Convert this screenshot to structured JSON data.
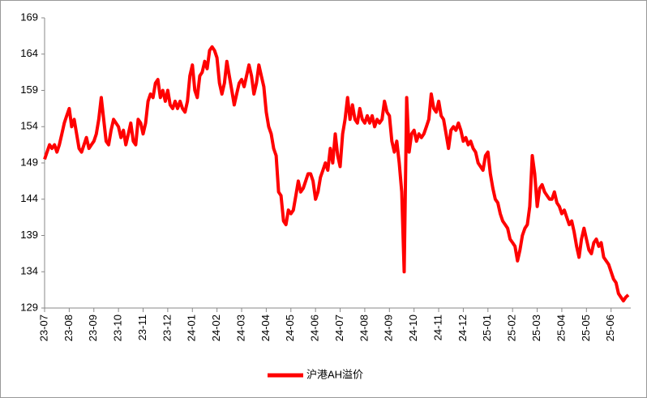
{
  "chart_data": {
    "type": "line",
    "x": [
      0,
      0.1,
      0.2,
      0.3,
      0.4,
      0.5,
      0.6,
      0.7,
      0.8,
      0.9,
      1,
      1.1,
      1.2,
      1.3,
      1.4,
      1.5,
      1.6,
      1.7,
      1.8,
      1.9,
      2,
      2.1,
      2.2,
      2.3,
      2.4,
      2.5,
      2.6,
      2.7,
      2.8,
      2.9,
      3,
      3.1,
      3.2,
      3.3,
      3.4,
      3.5,
      3.6,
      3.7,
      3.8,
      3.9,
      4,
      4.1,
      4.2,
      4.3,
      4.4,
      4.5,
      4.6,
      4.7,
      4.8,
      4.9,
      5,
      5.1,
      5.2,
      5.3,
      5.4,
      5.5,
      5.6,
      5.7,
      5.8,
      5.9,
      6,
      6.1,
      6.2,
      6.3,
      6.4,
      6.5,
      6.6,
      6.7,
      6.8,
      6.9,
      7,
      7.1,
      7.2,
      7.3,
      7.4,
      7.5,
      7.6,
      7.7,
      7.8,
      7.9,
      8,
      8.1,
      8.2,
      8.3,
      8.4,
      8.5,
      8.6,
      8.7,
      8.8,
      8.9,
      9,
      9.1,
      9.2,
      9.3,
      9.4,
      9.5,
      9.6,
      9.7,
      9.8,
      9.9,
      10,
      10.1,
      10.2,
      10.3,
      10.4,
      10.5,
      10.6,
      10.7,
      10.8,
      10.9,
      11,
      11.1,
      11.2,
      11.3,
      11.4,
      11.5,
      11.6,
      11.7,
      11.8,
      11.9,
      12,
      12.1,
      12.2,
      12.3,
      12.4,
      12.5,
      12.6,
      12.7,
      12.8,
      12.9,
      13,
      13.1,
      13.2,
      13.3,
      13.4,
      13.5,
      13.6,
      13.7,
      13.8,
      13.9,
      14,
      14.1,
      14.2,
      14.3,
      14.4,
      14.5,
      14.6,
      14.7,
      14.8,
      14.9,
      15,
      15.1,
      15.2,
      15.3,
      15.4,
      15.5,
      15.6,
      15.7,
      15.8,
      15.9,
      16,
      16.1,
      16.2,
      16.3,
      16.4,
      16.5,
      16.6,
      16.7,
      16.8,
      16.9,
      17,
      17.1,
      17.2,
      17.3,
      17.4,
      17.5,
      17.6,
      17.7,
      17.8,
      17.9,
      18,
      18.1,
      18.2,
      18.3,
      18.4,
      18.5,
      18.6,
      18.7,
      18.8,
      18.9,
      19,
      19.1,
      19.2,
      19.3,
      19.4,
      19.5,
      19.6,
      19.7,
      19.8,
      19.9,
      20,
      20.1,
      20.2,
      20.3,
      20.4,
      20.5,
      20.6,
      20.7,
      20.8,
      20.9,
      21,
      21.1,
      21.2,
      21.3,
      21.4,
      21.5,
      21.6,
      21.7,
      21.8,
      21.9,
      22,
      22.1,
      22.2,
      22.3,
      22.4,
      22.5,
      22.6,
      22.7,
      22.8,
      22.9,
      23,
      23.1,
      23.2,
      23.3,
      23.4,
      23.5,
      23.6,
      23.7
    ],
    "series": [
      {
        "name": "沪港AH溢价",
        "color": "#ff0000",
        "values": [
          149.5,
          150.5,
          151.5,
          151,
          151.5,
          150.5,
          151.5,
          153,
          154.5,
          155.5,
          156.5,
          154,
          155,
          153,
          151,
          150.5,
          151.5,
          152.5,
          151,
          151.5,
          152,
          153,
          155,
          158,
          155,
          152,
          151.5,
          153.5,
          155,
          154.5,
          154,
          152.5,
          153.5,
          151.5,
          153,
          154.5,
          152,
          151.5,
          155,
          154.5,
          153,
          154.5,
          157.5,
          158.5,
          158,
          160,
          160.5,
          158,
          159,
          157.5,
          159,
          157,
          156.5,
          157.5,
          156.5,
          157.5,
          156.5,
          156,
          157.5,
          161,
          162.5,
          159,
          158,
          161,
          161.5,
          163,
          162,
          164.5,
          165,
          164.5,
          163.5,
          160,
          158.5,
          160,
          163,
          161,
          159,
          157,
          158.5,
          160,
          160.5,
          159.5,
          161,
          162.5,
          161,
          158.5,
          160,
          162.5,
          161,
          159.5,
          156,
          154,
          153,
          151,
          150,
          145,
          144.5,
          141,
          140.5,
          142.5,
          142,
          142.5,
          144.5,
          146.5,
          145,
          145.5,
          146.5,
          147.5,
          147.5,
          146.5,
          144,
          145,
          147,
          148,
          149,
          148,
          151,
          149,
          153,
          150,
          148.5,
          153,
          155,
          158,
          155,
          157,
          155,
          154.5,
          156.5,
          155,
          154.5,
          155.5,
          154.5,
          155.5,
          154,
          155,
          154.5,
          155,
          157.5,
          156,
          155.5,
          152,
          150.5,
          152,
          149,
          145,
          134,
          158,
          150.5,
          153,
          153.5,
          152,
          153,
          152.5,
          153,
          154,
          155,
          158.5,
          156.5,
          156,
          157.5,
          155.5,
          155,
          153,
          151,
          153.5,
          154,
          153.5,
          154.5,
          153.5,
          152,
          152.5,
          151.5,
          152,
          151,
          150.5,
          149,
          148.5,
          148,
          150,
          150.5,
          147.5,
          145.5,
          144,
          143.5,
          142,
          141,
          140.5,
          140,
          138.5,
          138,
          137.5,
          135.5,
          137,
          139,
          140,
          140.5,
          143,
          150,
          147.5,
          143,
          145.5,
          146,
          145,
          144.5,
          144,
          144,
          145,
          143.5,
          143,
          142,
          142.5,
          141.5,
          140.5,
          141,
          139.5,
          137.5,
          136,
          138.5,
          140,
          138.5,
          137,
          136.5,
          138,
          138.5,
          137.5,
          138,
          136,
          135.5,
          135,
          134,
          133,
          132.5,
          131,
          130.5,
          130,
          130.5,
          130.8
        ]
      }
    ],
    "xlim": [
      0,
      23.8
    ],
    "xticks": [
      {
        "value": 0,
        "label": "23-07"
      },
      {
        "value": 1,
        "label": "23-08"
      },
      {
        "value": 2,
        "label": "23-09"
      },
      {
        "value": 3,
        "label": "23-10"
      },
      {
        "value": 4,
        "label": "23-11"
      },
      {
        "value": 5,
        "label": "23-12"
      },
      {
        "value": 6,
        "label": "24-01"
      },
      {
        "value": 7,
        "label": "24-02"
      },
      {
        "value": 8,
        "label": "24-03"
      },
      {
        "value": 9,
        "label": "24-04"
      },
      {
        "value": 10,
        "label": "24-05"
      },
      {
        "value": 11,
        "label": "24-06"
      },
      {
        "value": 12,
        "label": "24-07"
      },
      {
        "value": 13,
        "label": "24-08"
      },
      {
        "value": 14,
        "label": "24-09"
      },
      {
        "value": 15,
        "label": "24-10"
      },
      {
        "value": 16,
        "label": "24-11"
      },
      {
        "value": 17,
        "label": "24-12"
      },
      {
        "value": 18,
        "label": "25-01"
      },
      {
        "value": 19,
        "label": "25-02"
      },
      {
        "value": 20,
        "label": "25-03"
      },
      {
        "value": 21,
        "label": "25-04"
      },
      {
        "value": 22,
        "label": "25-05"
      },
      {
        "value": 23,
        "label": "25-06"
      }
    ],
    "ylim": [
      129,
      169
    ],
    "yticks": [
      129,
      134,
      139,
      144,
      149,
      154,
      159,
      164,
      169
    ],
    "legend": "bottom"
  }
}
